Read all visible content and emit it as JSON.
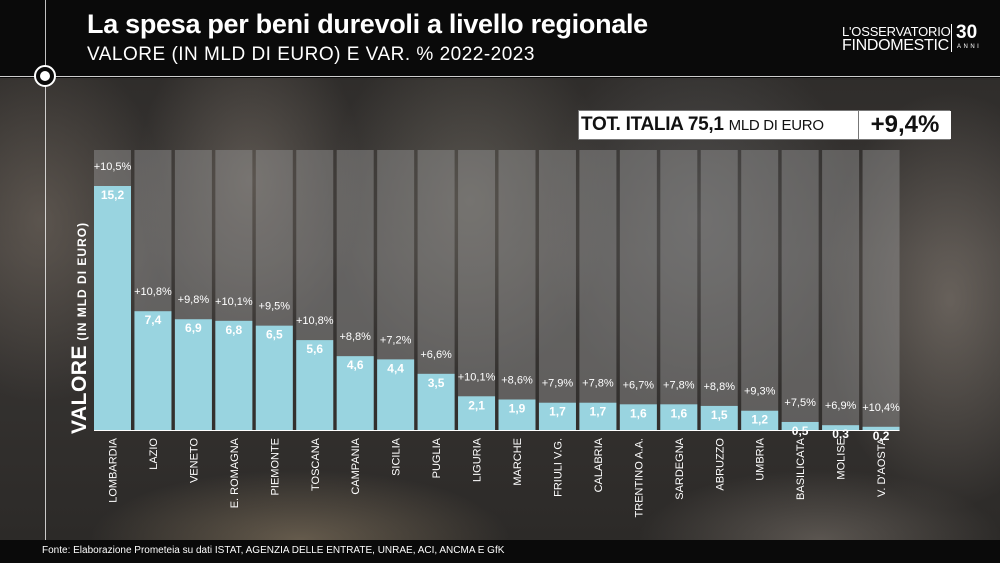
{
  "header": {
    "title": "La spesa per beni durevoli a livello regionale",
    "subtitle": "VALORE (IN MLD DI EURO) E VAR. % 2022-2023"
  },
  "logo": {
    "line1": "L'OSSERVATORIO",
    "line2": "FINDOMESTIC",
    "number": "30",
    "anni": "ANNI"
  },
  "total": {
    "label": "TOT. ITALIA 75,1",
    "unit": "MLD DI EURO",
    "change": "+9,4%"
  },
  "footer": {
    "source": "Fonte: Elaborazione Prometeia su dati ISTAT, AGENZIA DELLE ENTRATE, UNRAE, ACI, ANCMA E GfK"
  },
  "colors": {
    "bar": "#99d4e0",
    "column_bg": "#9a9a9a",
    "header_bg": "#0a0a0a"
  },
  "chart_data": {
    "type": "bar",
    "ylabel": "VALORE",
    "ylabel_unit": "(IN MLD DI EURO)",
    "categories": [
      "LOMBARDIA",
      "LAZIO",
      "VENETO",
      "E. ROMAGNA",
      "PIEMONTE",
      "TOSCANA",
      "CAMPANIA",
      "SICILIA",
      "PUGLIA",
      "LIGURIA",
      "MARCHE",
      "FRIULI V.G.",
      "CALABRIA",
      "TRENTINO A.A.",
      "SARDEGNA",
      "ABRUZZO",
      "UMBRIA",
      "BASILICATA",
      "MOLISE",
      "V. D'AOSTA"
    ],
    "values": [
      15.2,
      7.4,
      6.9,
      6.8,
      6.5,
      5.6,
      4.6,
      4.4,
      3.5,
      2.1,
      1.9,
      1.7,
      1.7,
      1.6,
      1.6,
      1.5,
      1.2,
      0.5,
      0.3,
      0.2
    ],
    "value_labels": [
      "15,2",
      "7,4",
      "6,9",
      "6,8",
      "6,5",
      "5,6",
      "4,6",
      "4,4",
      "3,5",
      "2,1",
      "1,9",
      "1,7",
      "1,7",
      "1,6",
      "1,6",
      "1,5",
      "1,2",
      "0,5",
      "0,3",
      "0,2"
    ],
    "changes": [
      10.5,
      10.8,
      9.8,
      10.1,
      9.5,
      10.8,
      8.8,
      7.2,
      6.6,
      10.1,
      8.6,
      7.9,
      7.8,
      6.7,
      7.8,
      8.8,
      9.3,
      7.5,
      6.9,
      10.4
    ],
    "change_labels": [
      "+10,5%",
      "+10,8%",
      "+9,8%",
      "+10,1%",
      "+9,5%",
      "+10,8%",
      "+8,8%",
      "+7,2%",
      "+6,6%",
      "+10,1%",
      "+8,6%",
      "+7,9%",
      "+7,8%",
      "+6,7%",
      "+7,8%",
      "+8,8%",
      "+9,3%",
      "+7,5%",
      "+6,9%",
      "+10,4%"
    ],
    "grid": false,
    "legend": "none"
  }
}
